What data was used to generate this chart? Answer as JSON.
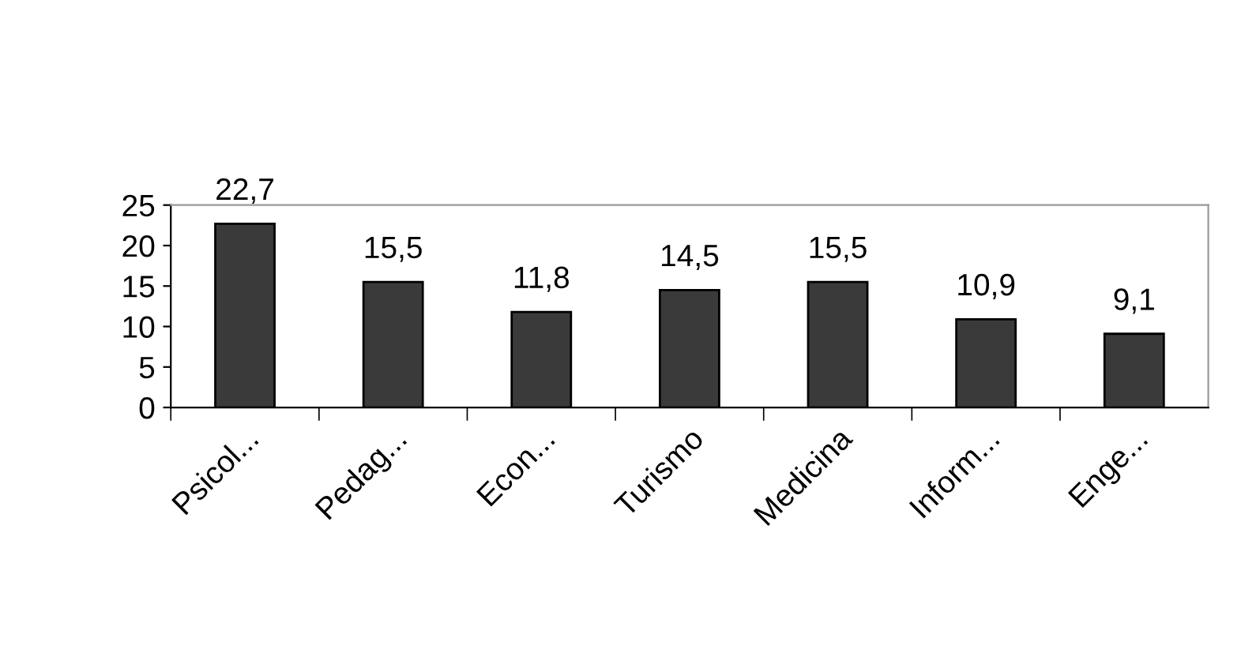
{
  "chart_data": {
    "type": "bar",
    "categories": [
      "Psicol...",
      "Pedag...",
      "Econ...",
      "Turismo",
      "Medicina",
      "Inform...",
      "Enge..."
    ],
    "values": [
      22.7,
      15.5,
      11.8,
      14.5,
      15.5,
      10.9,
      9.1
    ],
    "value_labels": [
      "22,7",
      "15,5",
      "11,8",
      "14,5",
      "15,5",
      "10,9",
      "9,1"
    ],
    "color": "#3a3a3a",
    "ylim": [
      0,
      25
    ],
    "yticks": [
      0,
      5,
      10,
      15,
      20,
      25
    ],
    "grid": false,
    "legend": false
  }
}
